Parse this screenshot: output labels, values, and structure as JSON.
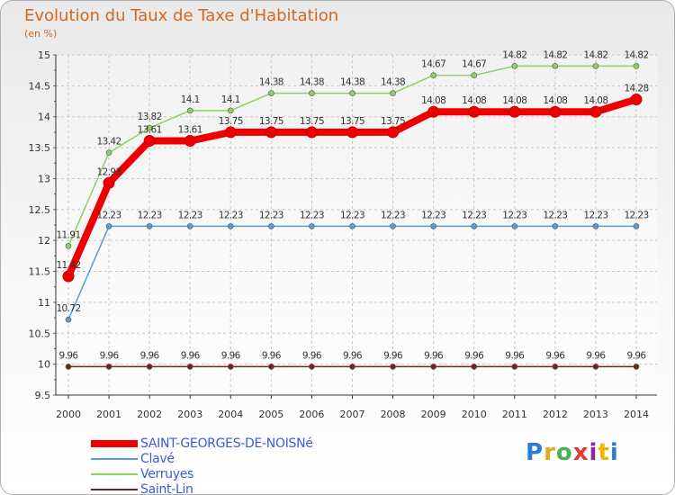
{
  "header": {
    "title": "Evolution du Taux de Taxe d'Habitation",
    "unit": "(en %)"
  },
  "logo": {
    "letters": [
      "P",
      "r",
      "o",
      "x",
      "i",
      "t",
      "i"
    ],
    "colors": [
      "#2e7bd6",
      "#e8a21e",
      "#4caf50",
      "#e53935",
      "#8e24aa",
      "#f0b400",
      "#2e7bd6"
    ]
  },
  "chart_data": {
    "type": "line",
    "x": [
      "2000",
      "2001",
      "2002",
      "2003",
      "2004",
      "2005",
      "2006",
      "2007",
      "2008",
      "2009",
      "2010",
      "2011",
      "2012",
      "2013",
      "2014"
    ],
    "ylim": [
      9.5,
      15
    ],
    "yticks": [
      "9.5",
      "10",
      "10.5",
      "11",
      "11.5",
      "12",
      "12.5",
      "13",
      "13.5",
      "14",
      "14.5",
      "15"
    ],
    "grid": true,
    "legend": "bottom-left",
    "series": [
      {
        "name": "Saint-Lin",
        "color": "#7b2020",
        "values": [
          9.96,
          9.96,
          9.96,
          9.96,
          9.96,
          9.96,
          9.96,
          9.96,
          9.96,
          9.96,
          9.96,
          9.96,
          9.96,
          9.96,
          9.96
        ],
        "labels": [
          "9.96",
          "9.96",
          "9.96",
          "9.96",
          "9.96",
          "9.96",
          "9.96",
          "9.96",
          "9.96",
          "9.96",
          "9.96",
          "9.96",
          "9.96",
          "9.96",
          "9.96"
        ]
      },
      {
        "name": "Clavé",
        "color": "#5b9bd5",
        "values": [
          10.72,
          12.23,
          12.23,
          12.23,
          12.23,
          12.23,
          12.23,
          12.23,
          12.23,
          12.23,
          12.23,
          12.23,
          12.23,
          12.23,
          12.23
        ],
        "labels": [
          "10.72",
          "12.23",
          "12.23",
          "12.23",
          "12.23",
          "12.23",
          "12.23",
          "12.23",
          "12.23",
          "12.23",
          "12.23",
          "12.23",
          "12.23",
          "12.23",
          "12.23"
        ]
      },
      {
        "name": "Verruyes",
        "color": "#90d060",
        "values": [
          11.91,
          13.42,
          13.82,
          14.1,
          14.1,
          14.38,
          14.38,
          14.38,
          14.38,
          14.67,
          14.67,
          14.82,
          14.82,
          14.82,
          14.82
        ],
        "labels": [
          "11.91",
          "13.42",
          "13.82",
          "14.1",
          "14.1",
          "14.38",
          "14.38",
          "14.38",
          "14.38",
          "14.67",
          "14.67",
          "14.82",
          "14.82",
          "14.82",
          "14.82"
        ]
      },
      {
        "name": "SAINT-GEORGES-DE-NOISNé",
        "color": "#ee0000",
        "values": [
          11.42,
          12.93,
          13.61,
          13.61,
          13.75,
          13.75,
          13.75,
          13.75,
          13.75,
          14.08,
          14.08,
          14.08,
          14.08,
          14.08,
          14.28
        ],
        "labels": [
          "11.42",
          "12.93",
          "13.61",
          "13.61",
          "13.75",
          "13.75",
          "13.75",
          "13.75",
          "13.75",
          "14.08",
          "14.08",
          "14.08",
          "14.08",
          "14.08",
          "14.28"
        ]
      }
    ],
    "legend_order": [
      "SAINT-GEORGES-DE-NOISNé",
      "Clavé",
      "Verruyes",
      "Saint-Lin"
    ]
  }
}
